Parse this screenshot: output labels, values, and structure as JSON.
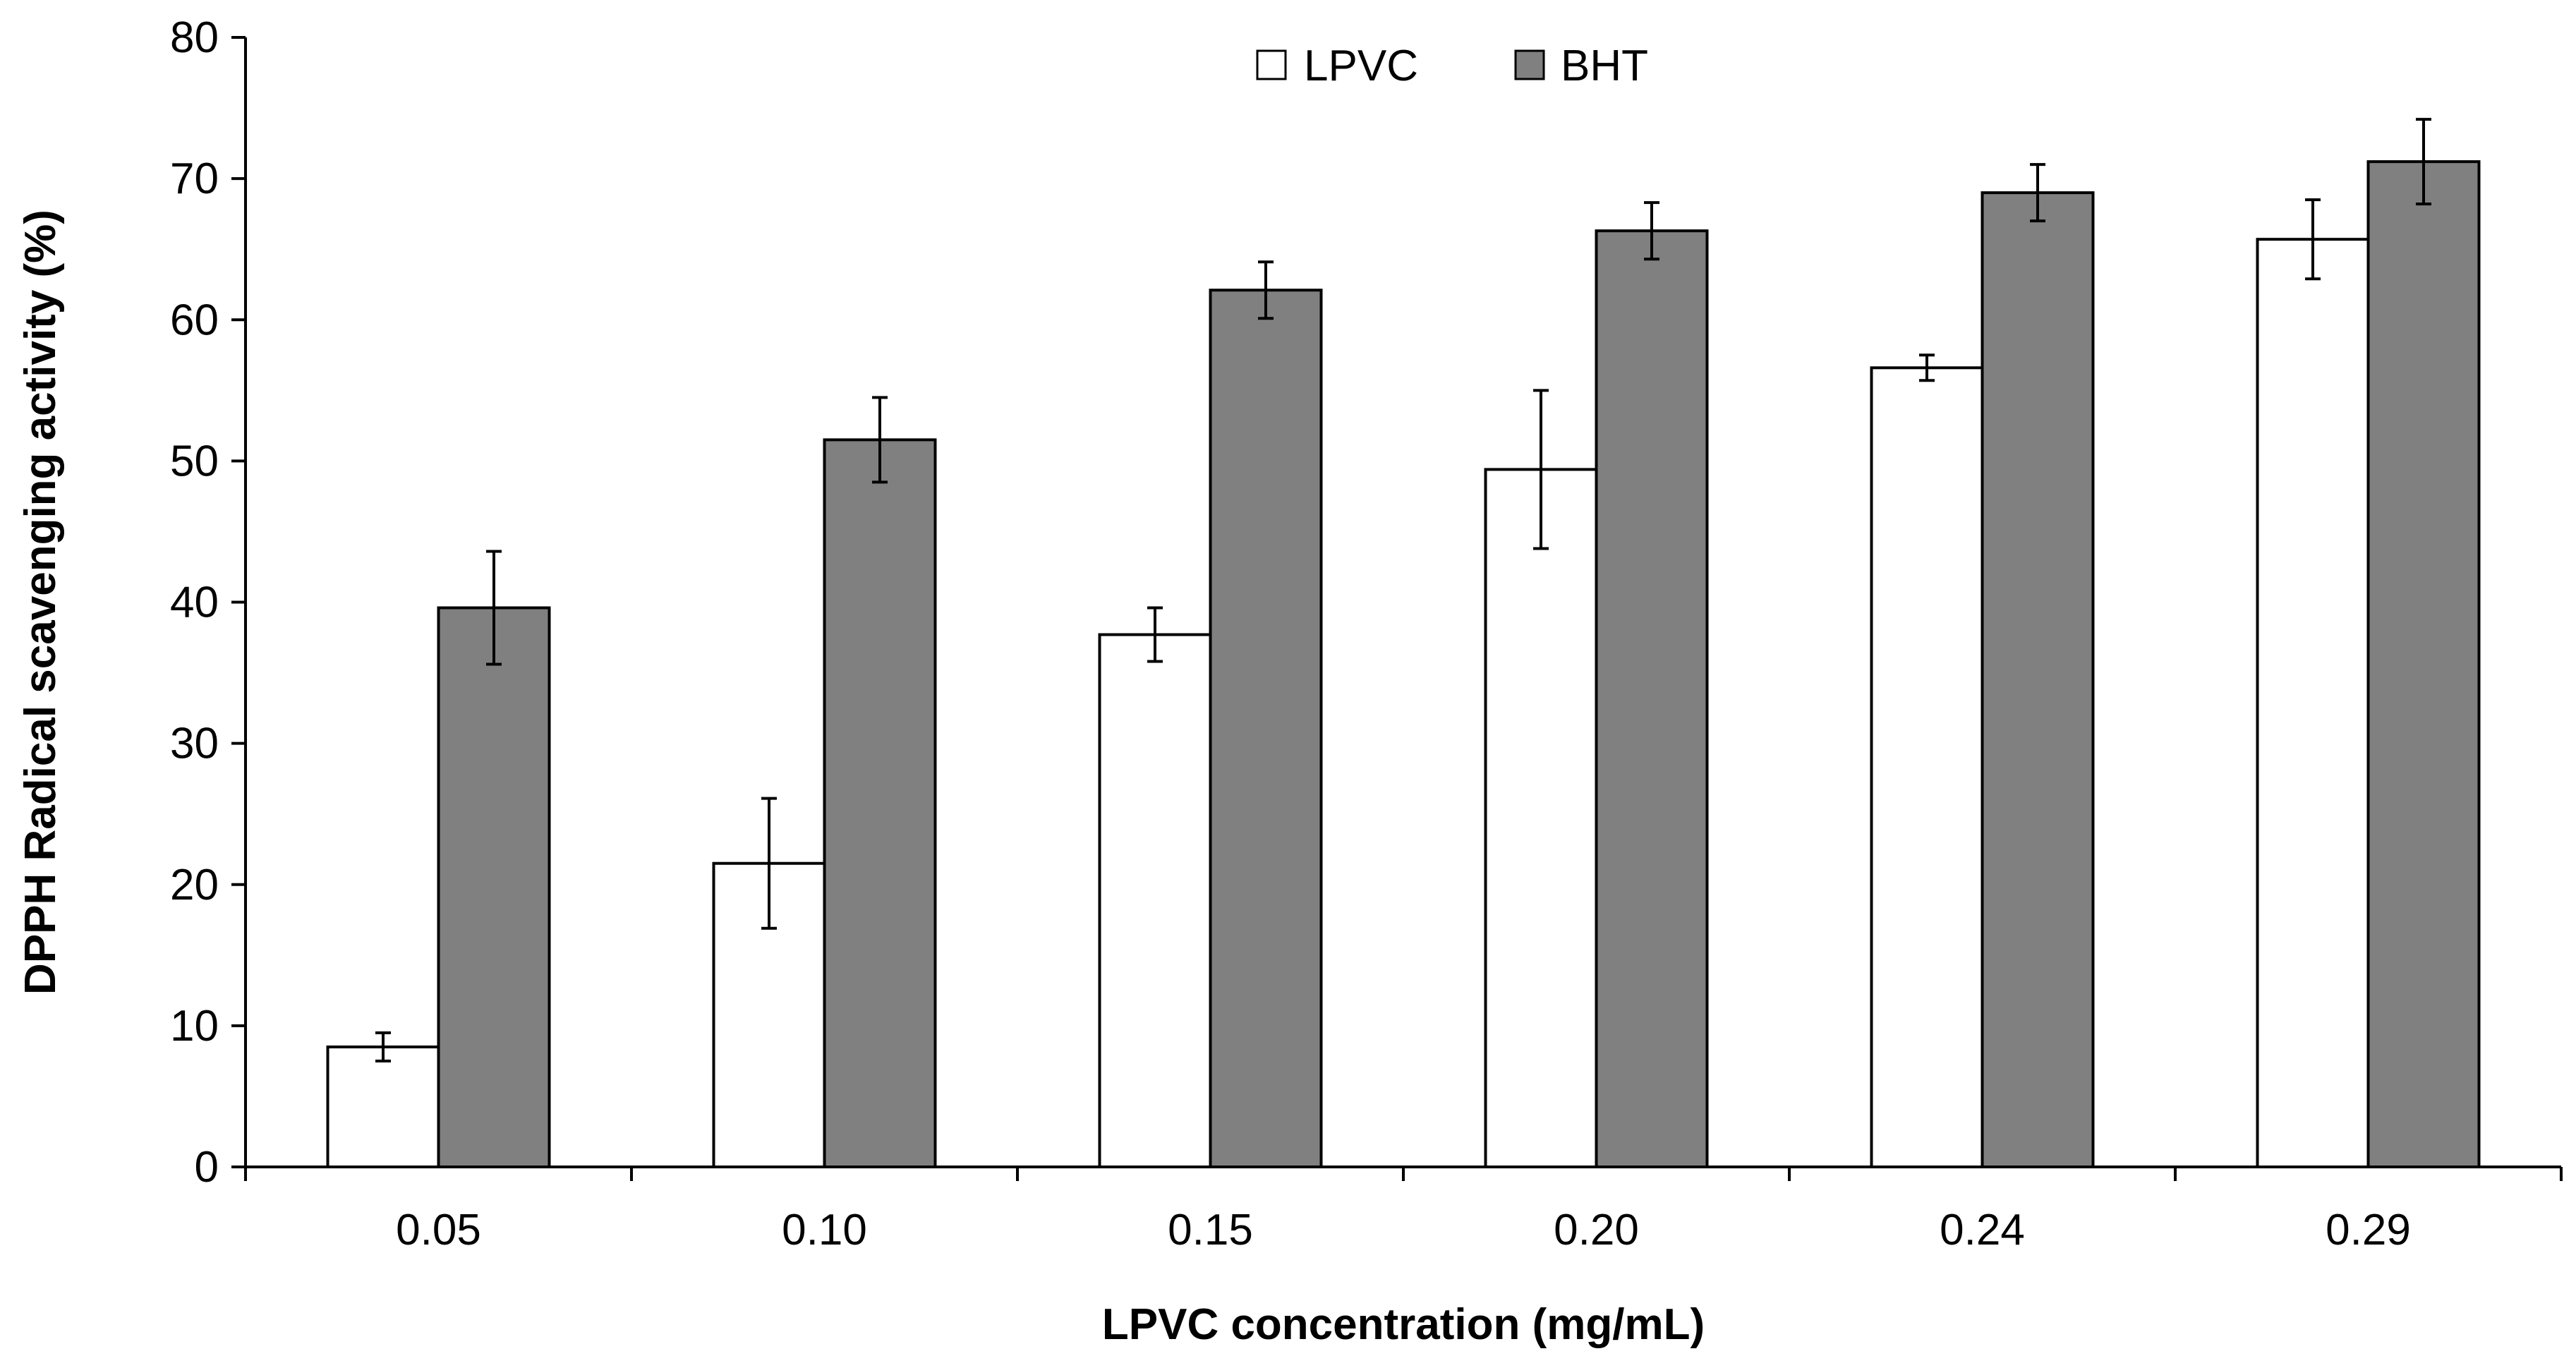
{
  "chart_data": {
    "type": "bar",
    "title": "",
    "xlabel": "LPVC concentration (mg/mL)",
    "ylabel": "DPPH Radical scavenging activity (%)",
    "categories": [
      "0.05",
      "0.10",
      "0.15",
      "0.20",
      "0.24",
      "0.29"
    ],
    "ylim": [
      0,
      80
    ],
    "ytick_step": 10,
    "grid": false,
    "legend_position": "top-center",
    "series": [
      {
        "name": "LPVC",
        "color": "#ffffff",
        "values": [
          8.5,
          21.5,
          37.7,
          49.4,
          56.6,
          65.7
        ],
        "errors": [
          1.0,
          4.6,
          1.9,
          5.6,
          0.9,
          2.8
        ]
      },
      {
        "name": "BHT",
        "color": "#808080",
        "values": [
          39.6,
          51.5,
          62.1,
          66.3,
          69.0,
          71.2
        ],
        "errors": [
          4.0,
          3.0,
          2.0,
          2.0,
          2.0,
          3.0
        ]
      }
    ]
  }
}
